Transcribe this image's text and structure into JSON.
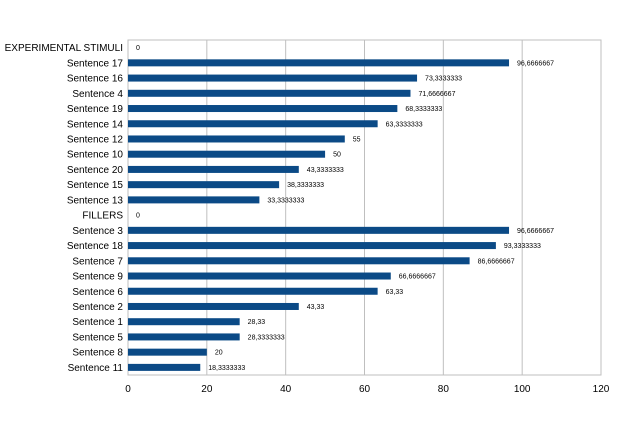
{
  "chart_data": {
    "type": "bar",
    "orientation": "horizontal",
    "title": "",
    "xlabel": "",
    "ylabel": "",
    "xlim": [
      0,
      120
    ],
    "x_ticks": [
      "0",
      "20",
      "40",
      "60",
      "80",
      "100",
      "120"
    ],
    "grid": "vertical",
    "legend": "none",
    "bar_color": "#0B4A86",
    "categories": [
      "EXPERIMENTAL STIMULI",
      "Sentence 17",
      "Sentence 16",
      "Sentence 4",
      "Sentence 19",
      "Sentence 14",
      "Sentence 12",
      "Sentence 10",
      "Sentence 20",
      "Sentence 15",
      "Sentence 13",
      "FILLERS",
      "Sentence 3",
      "Sentence 18",
      "Sentence 7",
      "Sentence 9",
      "Sentence 6",
      "Sentence 2",
      "Sentence 1",
      "Sentence 5",
      "Sentence 8",
      "Sentence 11"
    ],
    "values": [
      0,
      96.6666667,
      73.3333333,
      71.6666667,
      68.3333333,
      63.3333333,
      55,
      50,
      43.3333333,
      38.3333333,
      33.3333333,
      0,
      96.6666667,
      93.3333333,
      86.6666667,
      66.6666667,
      63.33,
      43.33,
      28.33,
      28.3333333,
      20,
      18.3333333
    ],
    "data_labels": [
      "0",
      "96,6666667",
      "73,3333333",
      "71,6666667",
      "68,3333333",
      "63,3333333",
      "55",
      "50",
      "43,3333333",
      "38,3333333",
      "33,3333333",
      "0",
      "96,6666667",
      "93,3333333",
      "86,6666667",
      "66,6666667",
      "63,33",
      "43,33",
      "28,33",
      "28,3333333",
      "20",
      "18,3333333"
    ]
  }
}
